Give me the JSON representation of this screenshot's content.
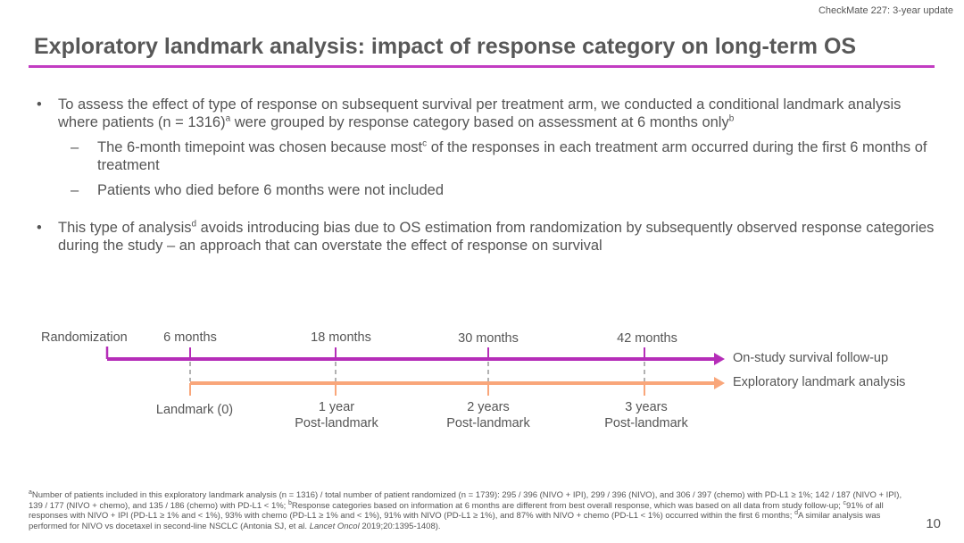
{
  "header": {
    "study": "CheckMate 227: 3-year update"
  },
  "title": "Exploratory landmark analysis: impact of response category on long-term OS",
  "bullets": [
    {
      "a": "To assess the effect of type of response on subsequent survival per treatment arm, we conducted a conditional landmark analysis where patients (n = 1316)",
      "sup1": "a",
      "b": " were grouped by response category based on assessment at 6 months only",
      "sup2": "b"
    },
    {
      "a": "The 6-month timepoint was chosen because most",
      "sup1": "c",
      "b": " of the responses in each treatment arm occurred during the first 6 months of treatment"
    },
    {
      "a": "Patients who died before 6 months were not included"
    },
    {
      "a": "This type of analysis",
      "sup1": "d",
      "b": " avoids introducing bias due to OS estimation from randomization by subsequently observed response categories during the study – an approach that can overstate the effect of response on survival"
    }
  ],
  "timeline": {
    "colors": {
      "follow_up": "#b52db8",
      "landmark": "#f9a67a"
    },
    "top_labels": [
      "Randomization",
      "6 months",
      "18 months",
      "30 months",
      "42 months"
    ],
    "follow_up_label": "On-study survival follow-up",
    "landmark_label": "Exploratory landmark analysis",
    "bottom_labels": [
      {
        "l1": "Landmark (0)",
        "l2": ""
      },
      {
        "l1": "1 year",
        "l2": "Post-landmark"
      },
      {
        "l1": "2 years",
        "l2": "Post-landmark"
      },
      {
        "l1": "3 years",
        "l2": "Post-landmark"
      }
    ]
  },
  "footnote": {
    "s_a": "a",
    "t1": "Number of patients included in this exploratory landmark analysis (n = 1316) / total number of patient randomized (n = 1739): 295 / 396 (NIVO + IPI), 299 / 396 (NIVO), and 306 / 397 (chemo) with PD-L1 ≥ 1%; 142 / 187 (NIVO + IPI), 139 / 177 (NIVO + chemo), and 135 / 186 (chemo) with PD-L1 < 1%; ",
    "s_b": "b",
    "t2": "Response categories based on information at 6 months are different from best overall response, which was based on all data from study follow-up; ",
    "s_c": "c",
    "t3": "91% of all responses with NIVO + IPI (PD-L1 ≥ 1% and < 1%), 93% with chemo (PD-L1 ≥ 1% and < 1%), 91% with NIVO (PD-L1 ≥ 1%), and 87% with NIVO + chemo (PD-L1 < 1%) occurred within the first 6 months; ",
    "s_d": "d",
    "t4": "A similar analysis was performed for NIVO vs docetaxel in second-line NSCLC (Antonia SJ, et al. ",
    "journal": "Lancet Oncol",
    "t5": " 2019;20:1395-1408)."
  },
  "page_number": "10"
}
